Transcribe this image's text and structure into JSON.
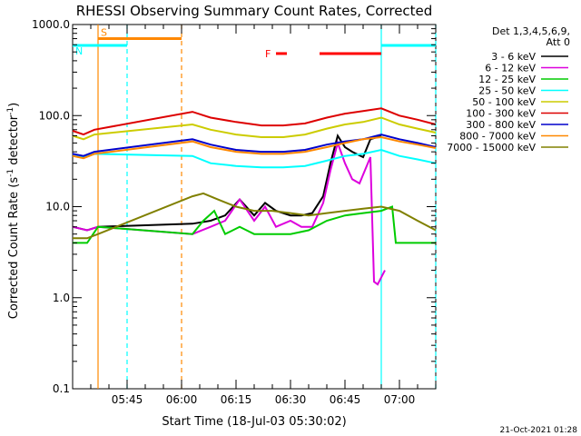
{
  "chart_data": {
    "type": "line",
    "title": "RHESSI Observing Summary Count Rates, Corrected",
    "xlabel": "Start Time (18-Jul-03 05:30:02)",
    "ylabel": "Corrected Count Rate (s-1 detector-1)",
    "ylabel_main": "Corrected Count Rate (s",
    "ylabel_sup1": "-1",
    "ylabel_mid": " detector",
    "ylabel_sup2": "-1",
    "ylabel_end": ")",
    "yscale": "log",
    "ylim": [
      0.1,
      1000
    ],
    "xlim_minutes": [
      0,
      100
    ],
    "x_ticks": [
      {
        "label": "05:45",
        "minute": 15
      },
      {
        "label": "06:00",
        "minute": 30
      },
      {
        "label": "06:15",
        "minute": 45
      },
      {
        "label": "06:30",
        "minute": 60
      },
      {
        "label": "06:45",
        "minute": 75
      },
      {
        "label": "07:00",
        "minute": 90
      }
    ],
    "y_ticks": [
      {
        "label": "0.1",
        "value": 0.1
      },
      {
        "label": "1.0",
        "value": 1
      },
      {
        "label": "10.0",
        "value": 10
      },
      {
        "label": "100.0",
        "value": 100
      },
      {
        "label": "1000.0",
        "value": 1000
      }
    ],
    "legend_header": [
      "Det 1,3,4,5,6,9,",
      "Att 0"
    ],
    "legend_position": "right",
    "footer": "21-Oct-2021 01:28",
    "series": [
      {
        "name": "3 - 6 keV",
        "color": "#000000",
        "points": [
          [
            0,
            6
          ],
          [
            4,
            5.5
          ],
          [
            7,
            6
          ],
          [
            33,
            6.5
          ],
          [
            38,
            7
          ],
          [
            42,
            8
          ],
          [
            46,
            12
          ],
          [
            50,
            8
          ],
          [
            53,
            11
          ],
          [
            56,
            9
          ],
          [
            60,
            8
          ],
          [
            63,
            8
          ],
          [
            66,
            8.5
          ],
          [
            69,
            13
          ],
          [
            71,
            30
          ],
          [
            73,
            60
          ],
          [
            75,
            45
          ],
          [
            77,
            40
          ],
          [
            80,
            35
          ],
          [
            82,
            55
          ],
          [
            85,
            60
          ]
        ]
      },
      {
        "name": "6 - 12 keV",
        "color": "#dd00dd",
        "points": [
          [
            0,
            6
          ],
          [
            4,
            5.5
          ],
          [
            7,
            6
          ],
          [
            33,
            5
          ],
          [
            38,
            6
          ],
          [
            42,
            7
          ],
          [
            46,
            12
          ],
          [
            50,
            7
          ],
          [
            53,
            10
          ],
          [
            56,
            6
          ],
          [
            60,
            7
          ],
          [
            63,
            6
          ],
          [
            66,
            6
          ],
          [
            69,
            11
          ],
          [
            71,
            25
          ],
          [
            73,
            50
          ],
          [
            75,
            30
          ],
          [
            77,
            20
          ],
          [
            79,
            18
          ],
          [
            82,
            35
          ],
          [
            83,
            1.5
          ],
          [
            84,
            1.4
          ],
          [
            86,
            2.0
          ]
        ]
      },
      {
        "name": "12 - 25 keV",
        "color": "#00cc00",
        "points": [
          [
            0,
            4
          ],
          [
            4,
            4
          ],
          [
            7,
            6
          ],
          [
            33,
            5
          ],
          [
            36,
            7
          ],
          [
            39,
            9
          ],
          [
            42,
            5
          ],
          [
            46,
            6
          ],
          [
            50,
            5
          ],
          [
            55,
            5
          ],
          [
            60,
            5
          ],
          [
            65,
            5.5
          ],
          [
            70,
            7
          ],
          [
            75,
            8
          ],
          [
            80,
            8.5
          ],
          [
            85,
            9
          ],
          [
            88,
            10
          ],
          [
            89,
            4
          ],
          [
            92,
            4
          ],
          [
            96,
            4
          ],
          [
            100,
            4
          ]
        ]
      },
      {
        "name": "25 - 50 keV",
        "color": "#00ffff",
        "points": [
          [
            0,
            38
          ],
          [
            3,
            35
          ],
          [
            6,
            38
          ],
          [
            33,
            36
          ],
          [
            38,
            30
          ],
          [
            45,
            28
          ],
          [
            52,
            27
          ],
          [
            58,
            27
          ],
          [
            64,
            28
          ],
          [
            70,
            32
          ],
          [
            75,
            36
          ],
          [
            80,
            38
          ],
          [
            85,
            42
          ],
          [
            90,
            36
          ],
          [
            95,
            33
          ],
          [
            100,
            30
          ]
        ]
      },
      {
        "name": "50 - 100 keV",
        "color": "#cccc00",
        "points": [
          [
            0,
            60
          ],
          [
            3,
            55
          ],
          [
            6,
            62
          ],
          [
            33,
            80
          ],
          [
            38,
            70
          ],
          [
            45,
            62
          ],
          [
            52,
            58
          ],
          [
            58,
            58
          ],
          [
            64,
            62
          ],
          [
            70,
            72
          ],
          [
            75,
            80
          ],
          [
            80,
            85
          ],
          [
            85,
            95
          ],
          [
            90,
            80
          ],
          [
            95,
            72
          ],
          [
            100,
            65
          ]
        ]
      },
      {
        "name": "100 - 300 keV",
        "color": "#dd0000",
        "points": [
          [
            0,
            68
          ],
          [
            3,
            62
          ],
          [
            6,
            70
          ],
          [
            33,
            110
          ],
          [
            38,
            95
          ],
          [
            45,
            85
          ],
          [
            52,
            78
          ],
          [
            58,
            78
          ],
          [
            64,
            82
          ],
          [
            70,
            95
          ],
          [
            75,
            105
          ],
          [
            80,
            112
          ],
          [
            85,
            120
          ],
          [
            90,
            100
          ],
          [
            95,
            90
          ],
          [
            100,
            80
          ]
        ]
      },
      {
        "name": "300 - 800 keV",
        "color": "#0000cc",
        "points": [
          [
            0,
            38
          ],
          [
            3,
            36
          ],
          [
            6,
            40
          ],
          [
            33,
            55
          ],
          [
            38,
            48
          ],
          [
            45,
            42
          ],
          [
            52,
            40
          ],
          [
            58,
            40
          ],
          [
            64,
            42
          ],
          [
            70,
            48
          ],
          [
            75,
            52
          ],
          [
            80,
            55
          ],
          [
            85,
            62
          ],
          [
            90,
            55
          ],
          [
            95,
            50
          ],
          [
            100,
            45
          ]
        ]
      },
      {
        "name": "800 - 7000 keV",
        "color": "#ff8800",
        "points": [
          [
            0,
            36
          ],
          [
            3,
            34
          ],
          [
            6,
            38
          ],
          [
            33,
            52
          ],
          [
            38,
            45
          ],
          [
            45,
            40
          ],
          [
            52,
            38
          ],
          [
            58,
            38
          ],
          [
            64,
            40
          ],
          [
            70,
            45
          ],
          [
            75,
            50
          ],
          [
            80,
            55
          ],
          [
            85,
            58
          ],
          [
            90,
            52
          ],
          [
            95,
            48
          ],
          [
            100,
            44
          ]
        ]
      },
      {
        "name": "7000 - 15000 keV",
        "color": "#808000",
        "points": [
          [
            0,
            4.5
          ],
          [
            4,
            4.5
          ],
          [
            7,
            5
          ],
          [
            33,
            13
          ],
          [
            36,
            14
          ],
          [
            40,
            12
          ],
          [
            45,
            10
          ],
          [
            50,
            9
          ],
          [
            55,
            9
          ],
          [
            60,
            8.5
          ],
          [
            65,
            8
          ],
          [
            70,
            8.5
          ],
          [
            75,
            9
          ],
          [
            80,
            9.5
          ],
          [
            85,
            10
          ],
          [
            90,
            9
          ],
          [
            95,
            7
          ],
          [
            100,
            5.5
          ]
        ]
      }
    ],
    "attenuator_bars": [
      {
        "label": "S",
        "color": "#ff8800",
        "x": [
          7,
          30
        ],
        "y": 700
      },
      {
        "label": "N",
        "color": "#00ffff",
        "x": [
          0,
          15
        ],
        "y": 590
      },
      {
        "label": "",
        "color": "#00ffff",
        "x": [
          85,
          100
        ],
        "y": 590
      }
    ],
    "flare_marker": {
      "label": "F",
      "color": "#ff0000",
      "segments": [
        [
          56,
          59
        ],
        [
          68,
          85
        ]
      ],
      "y": 480
    },
    "vertical_markers": [
      {
        "x": 7,
        "color": "#ff8800",
        "style": "solid"
      },
      {
        "x": 15,
        "color": "#00ffff",
        "style": "dashed"
      },
      {
        "x": 30,
        "color": "#ff8800",
        "style": "dashed"
      },
      {
        "x": 85,
        "color": "#00ffff",
        "style": "solid"
      },
      {
        "x": 100,
        "color": "#00ffff",
        "style": "dashed"
      }
    ]
  }
}
